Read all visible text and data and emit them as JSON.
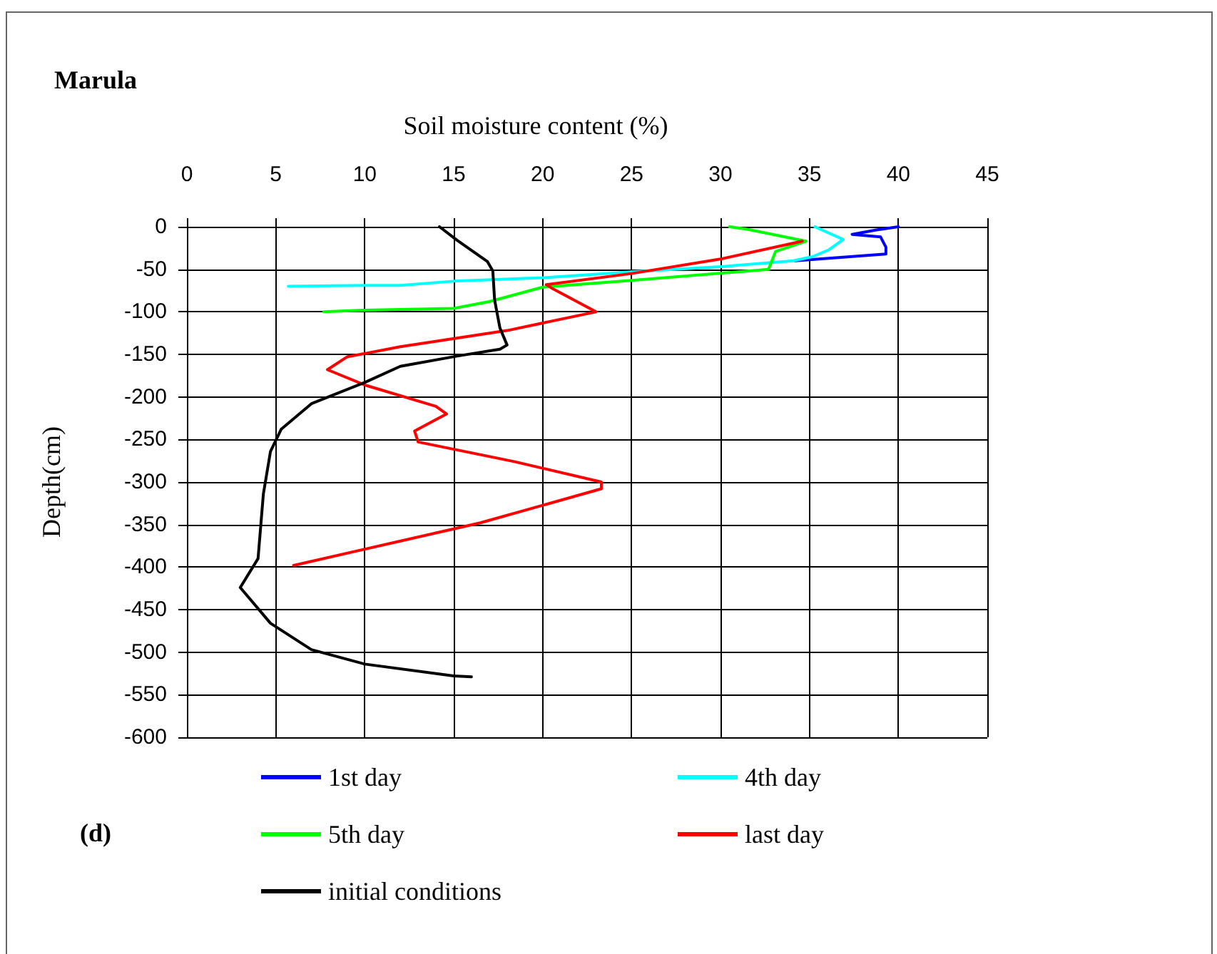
{
  "chart_data": {
    "type": "line",
    "title": "Marula",
    "xlabel": "Soil moisture content (%)",
    "ylabel": "Depth(cm)",
    "annotations": [
      "(d)"
    ],
    "xlim": [
      0,
      45
    ],
    "xticks": [
      0,
      5,
      10,
      15,
      20,
      25,
      30,
      35,
      40,
      45
    ],
    "ylim": [
      -600,
      0
    ],
    "yticks": [
      -600,
      -550,
      -500,
      -450,
      -400,
      -350,
      -300,
      -250,
      -200,
      -150,
      -100,
      -50,
      0
    ],
    "grid": true,
    "legend": "bottom",
    "marker": "none",
    "line_style": "solid",
    "series": [
      {
        "name": "1st day",
        "color": "#0000ff",
        "x": [
          40,
          38.7,
          37.4,
          39,
          39.3,
          39.3,
          34.2
        ],
        "values": [
          0,
          -4,
          -9,
          -12,
          -24,
          -32,
          -40
        ]
      },
      {
        "name": "4th day",
        "color": "#00ffff",
        "x": [
          35.3,
          36.9,
          36.1,
          35.2,
          34.1,
          30,
          25,
          20,
          15,
          12,
          10,
          5.7
        ],
        "values": [
          0,
          -15,
          -27,
          -35,
          -40,
          -47,
          -53,
          -60,
          -64,
          -69,
          -69,
          -70
        ]
      },
      {
        "name": "5th day",
        "color": "#00ff00",
        "x": [
          30.5,
          31.5,
          34.8,
          33.1,
          32.7,
          31,
          25,
          20,
          17,
          15,
          10,
          7.7
        ],
        "values": [
          0,
          -3,
          -17,
          -29,
          -50,
          -53,
          -63,
          -71,
          -88,
          -96,
          -98,
          -100
        ]
      },
      {
        "name": "last day",
        "color": "#ff0000",
        "x": [
          34.6,
          30,
          25,
          20.2,
          20.5,
          23,
          18,
          12,
          9,
          7.9,
          10,
          14,
          14.6,
          12.8,
          13,
          18.4,
          23.3,
          23.3,
          16.5,
          6
        ],
        "values": [
          -17,
          -38,
          -55,
          -68,
          -72,
          -100,
          -122,
          -141,
          -153,
          -168,
          -186,
          -211,
          -220,
          -240,
          -253,
          -276,
          -300,
          -308,
          -348,
          -398
        ]
      },
      {
        "name": "initial conditions",
        "color": "#000000",
        "x": [
          14.2,
          15.2,
          16.9,
          17.2,
          17.3,
          17.6,
          18,
          17.6,
          15.2,
          12,
          10,
          7,
          5.3,
          4.7,
          4.3,
          4,
          3,
          4.7,
          7,
          10,
          15,
          16
        ],
        "values": [
          0,
          -16,
          -41,
          -52,
          -86,
          -119,
          -139,
          -144,
          -152,
          -164,
          -183,
          -208,
          -238,
          -264,
          -314,
          -390,
          -424,
          -466,
          -497,
          -514,
          -528,
          -529
        ]
      }
    ]
  }
}
